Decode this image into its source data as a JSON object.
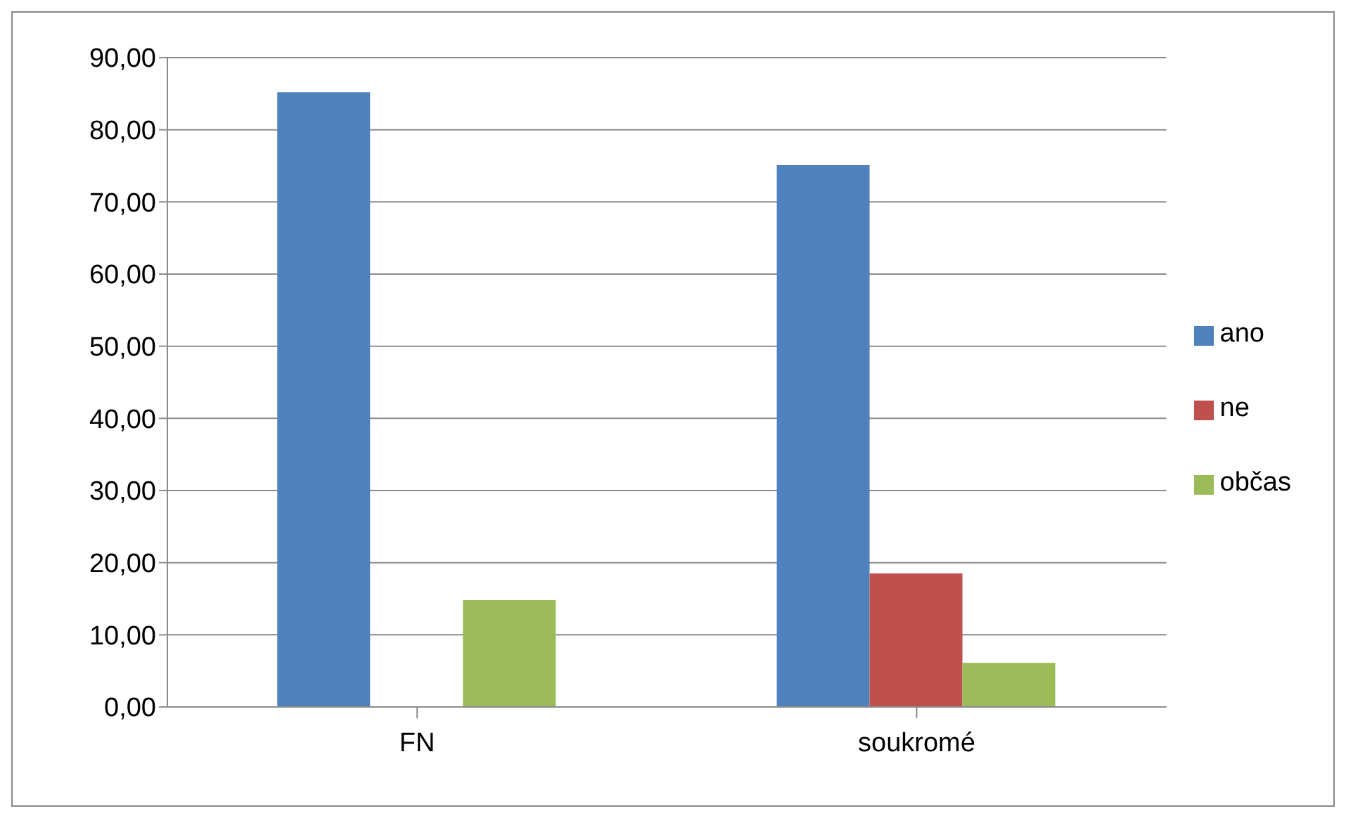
{
  "chart_data": {
    "type": "bar",
    "categories": [
      "FN",
      "soukromé"
    ],
    "series": [
      {
        "name": "ano",
        "color": "#4f81bd",
        "values": [
          85.2,
          75.1
        ]
      },
      {
        "name": "ne",
        "color": "#c0504d",
        "values": [
          0,
          18.5
        ]
      },
      {
        "name": "občas",
        "color": "#9bbb59",
        "values": [
          14.8,
          6.1
        ]
      }
    ],
    "ylim": [
      0,
      90
    ],
    "yticks": [
      {
        "value": 0,
        "label": "0,00"
      },
      {
        "value": 10,
        "label": "10,00"
      },
      {
        "value": 20,
        "label": "20,00"
      },
      {
        "value": 30,
        "label": "30,00"
      },
      {
        "value": 40,
        "label": "40,00"
      },
      {
        "value": 50,
        "label": "50,00"
      },
      {
        "value": 60,
        "label": "60,00"
      },
      {
        "value": 70,
        "label": "70,00"
      },
      {
        "value": 80,
        "label": "80,00"
      },
      {
        "value": 90,
        "label": "90,00"
      }
    ],
    "grid": "y",
    "legend": "right"
  }
}
